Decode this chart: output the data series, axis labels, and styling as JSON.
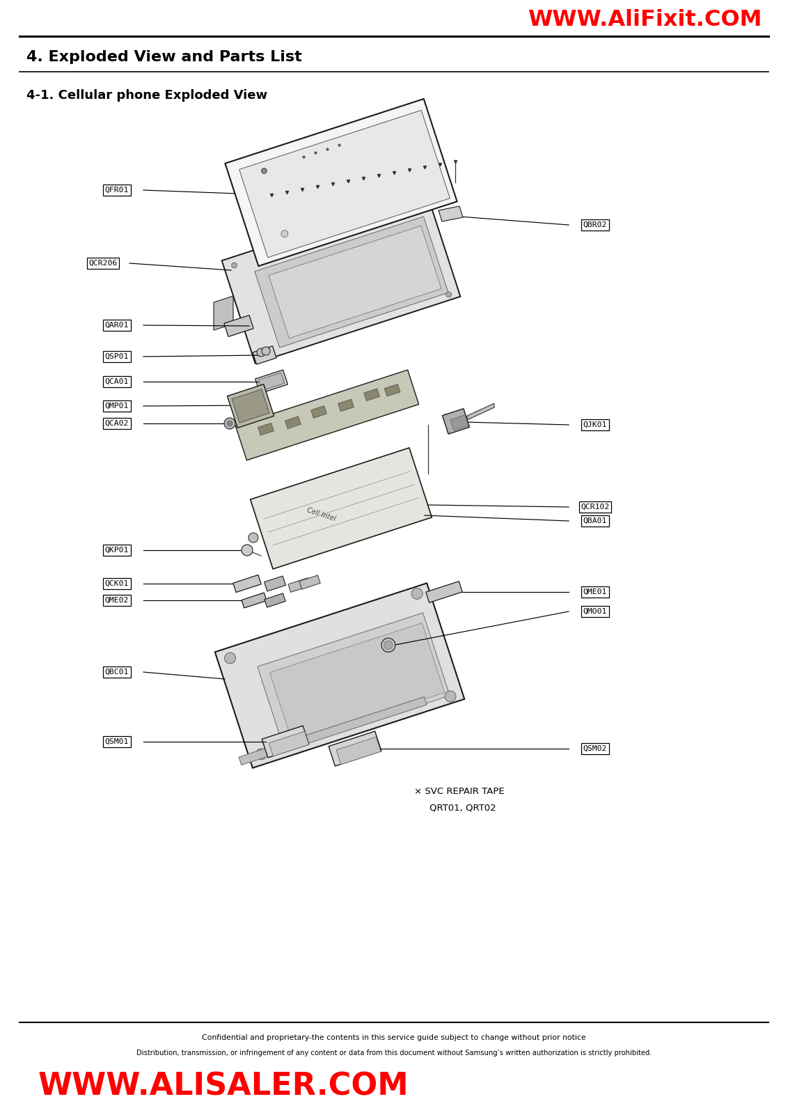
{
  "title_top": "WWW.AliFixit.COM",
  "title_bottom": "WWW.ALISALER.COM",
  "section_title": "4. Exploded View and Parts List",
  "subsection_title": "4-1. Cellular phone Exploded View",
  "footer_line1": "Confidential and proprietary-the contents in this service guide subject to change without prior notice",
  "footer_line2": "Distribution, transmission, or infringement of any content or data from this document without Samsung’s written authorization is strictly prohibited.",
  "svc_note_line1": "× SVC REPAIR TAPE",
  "svc_note_line2": "QRT01, QRT02",
  "bg_color": "#ffffff",
  "title_color": "#ff0000",
  "text_color": "#000000",
  "line_color": "#000000",
  "label_box_color": "#ffffff",
  "label_box_edge": "#000000",
  "part_edge_color": "#1a1a1a",
  "part_fill_light": "#f0f0f0",
  "part_fill_mid": "#d8d8d8",
  "part_fill_dark": "#b0b0b0",
  "rotation_deg": -18
}
